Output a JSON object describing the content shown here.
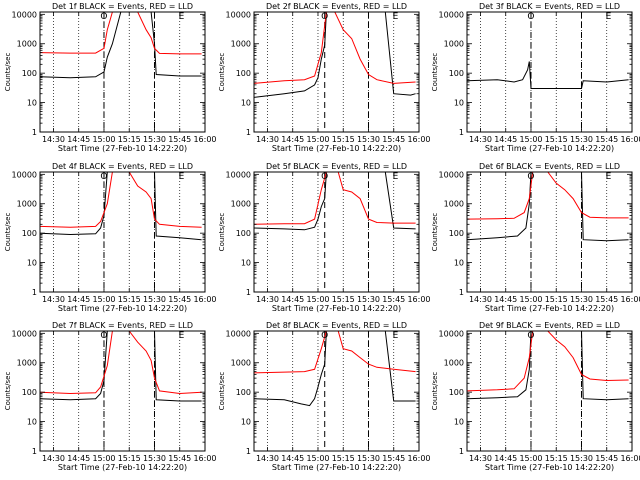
{
  "chart_data": [
    {
      "type": "line",
      "title": "Det 1f BLACK = Events, RED = LLD",
      "ylabel": "Counts/sec",
      "xlabel": "Start Time (27-Feb-10 14:22:20)",
      "x_ticks": [
        "14:30",
        "14:45",
        "15:00",
        "15:15",
        "15:30",
        "15:45",
        "16:00"
      ],
      "y_ticks": [
        "1",
        "10",
        "100",
        "1000",
        "10000"
      ],
      "yscale": "log",
      "ylim": [
        1,
        12000
      ],
      "xlim": [
        "14:22",
        "16:00"
      ],
      "markers": [
        "O",
        "E"
      ],
      "event_lines": [
        "15:00",
        "15:30"
      ],
      "series": [
        {
          "name": "BLACK",
          "color": "#000000",
          "x": [
            "14:22",
            "14:40",
            "14:55",
            "15:00",
            "15:02",
            "15:05",
            "15:10",
            "15:15",
            "15:20",
            "15:28",
            "15:30",
            "15:31",
            "15:45",
            "15:58"
          ],
          "values": [
            75,
            70,
            75,
            110,
            350,
            1000,
            12000,
            12000,
            12000,
            12000,
            1000,
            90,
            80,
            80
          ]
        },
        {
          "name": "RED",
          "color": "#ff0000",
          "x": [
            "14:22",
            "14:40",
            "14:55",
            "15:00",
            "15:02",
            "15:05",
            "15:10",
            "15:15",
            "15:20",
            "15:25",
            "15:28",
            "15:30",
            "15:33",
            "15:45",
            "15:58"
          ],
          "values": [
            500,
            480,
            480,
            700,
            3000,
            12000,
            12000,
            12000,
            12000,
            3000,
            1600,
            700,
            470,
            450,
            450
          ]
        }
      ]
    },
    {
      "type": "line",
      "title": "Det 2f BLACK = Events, RED = LLD",
      "ylabel": "Counts/sec",
      "xlabel": "Start Time (27-Feb-10 14:22:20)",
      "x_ticks": [
        "14:30",
        "14:45",
        "15:00",
        "15:15",
        "15:30",
        "15:45",
        "16:00"
      ],
      "y_ticks": [
        "1",
        "10",
        "100",
        "1000",
        "10000"
      ],
      "yscale": "log",
      "ylim": [
        1,
        12000
      ],
      "xlim": [
        "14:22",
        "16:00"
      ],
      "markers": [
        "O",
        "E"
      ],
      "event_lines": [
        "15:04",
        "15:30"
      ],
      "series": [
        {
          "name": "BLACK",
          "color": "#000000",
          "x": [
            "14:22",
            "14:40",
            "14:52",
            "14:58",
            "15:00",
            "15:02",
            "15:04",
            "15:05",
            "15:06",
            "15:32",
            "15:40",
            "15:45",
            "15:55",
            "15:58"
          ],
          "values": [
            15,
            20,
            25,
            40,
            70,
            300,
            900,
            12000,
            12000,
            12000,
            12000,
            20,
            18,
            20
          ]
        },
        {
          "name": "RED",
          "color": "#ff0000",
          "x": [
            "14:22",
            "14:40",
            "14:52",
            "14:58",
            "15:02",
            "15:05",
            "15:08",
            "15:10",
            "15:15",
            "15:20",
            "15:25",
            "15:30",
            "15:35",
            "15:45",
            "15:58"
          ],
          "values": [
            45,
            55,
            60,
            80,
            500,
            12000,
            12000,
            12000,
            3000,
            1500,
            300,
            90,
            60,
            45,
            50
          ]
        }
      ]
    },
    {
      "type": "line",
      "title": "Det 3f BLACK = Events, RED = LLD",
      "ylabel": "Counts/sec",
      "xlabel": "Start Time (27-Feb-10 14:22:20)",
      "x_ticks": [
        "14:30",
        "14:45",
        "15:00",
        "15:15",
        "15:30",
        "15:45",
        "16:00"
      ],
      "y_ticks": [
        "1",
        "10",
        "100",
        "1000",
        "10000"
      ],
      "yscale": "log",
      "ylim": [
        1,
        12000
      ],
      "xlim": [
        "14:22",
        "16:00"
      ],
      "markers": [
        "O",
        "E"
      ],
      "event_lines": [
        "15:00",
        "15:30"
      ],
      "series": [
        {
          "name": "BLACK",
          "color": "#000000",
          "x": [
            "14:22",
            "14:40",
            "14:50",
            "14:55",
            "14:58",
            "14:59",
            "15:00",
            "15:30",
            "15:31",
            "15:45",
            "15:58"
          ],
          "values": [
            55,
            60,
            50,
            60,
            130,
            250,
            30,
            30,
            55,
            50,
            60
          ]
        }
      ]
    },
    {
      "type": "line",
      "title": "Det 4f BLACK = Events, RED = LLD",
      "ylabel": "Counts/sec",
      "xlabel": "Start Time (27-Feb-10 14:22:20)",
      "x_ticks": [
        "14:30",
        "14:45",
        "15:00",
        "15:15",
        "15:30",
        "15:45",
        "16:00"
      ],
      "y_ticks": [
        "1",
        "10",
        "100",
        "1000",
        "10000"
      ],
      "yscale": "log",
      "ylim": [
        1,
        12000
      ],
      "xlim": [
        "14:22",
        "16:00"
      ],
      "markers": [
        "O",
        "E"
      ],
      "event_lines": [
        "15:00",
        "15:30"
      ],
      "series": [
        {
          "name": "BLACK",
          "color": "#000000",
          "x": [
            "14:22",
            "14:40",
            "14:55",
            "14:58",
            "15:00",
            "15:02",
            "15:05",
            "15:10",
            "15:28",
            "15:30",
            "15:31",
            "15:45",
            "15:58"
          ],
          "values": [
            100,
            90,
            95,
            150,
            400,
            12000,
            12000,
            12000,
            12000,
            12000,
            80,
            70,
            60
          ]
        },
        {
          "name": "RED",
          "color": "#ff0000",
          "x": [
            "14:22",
            "14:40",
            "14:55",
            "14:58",
            "15:02",
            "15:05",
            "15:08",
            "15:15",
            "15:20",
            "15:25",
            "15:28",
            "15:30",
            "15:33",
            "15:45",
            "15:58"
          ],
          "values": [
            170,
            160,
            170,
            250,
            1000,
            12000,
            12000,
            12000,
            4000,
            2500,
            1500,
            300,
            200,
            170,
            160
          ]
        }
      ]
    },
    {
      "type": "line",
      "title": "Det 5f BLACK = Events, RED = LLD",
      "ylabel": "Counts/sec",
      "xlabel": "Start Time (27-Feb-10 14:22:20)",
      "x_ticks": [
        "14:30",
        "14:45",
        "15:00",
        "15:15",
        "15:30",
        "15:45",
        "16:00"
      ],
      "y_ticks": [
        "1",
        "10",
        "100",
        "1000",
        "10000"
      ],
      "yscale": "log",
      "ylim": [
        1,
        12000
      ],
      "xlim": [
        "14:22",
        "16:00"
      ],
      "markers": [
        "O",
        "E"
      ],
      "event_lines": [
        "15:04",
        "15:30"
      ],
      "series": [
        {
          "name": "BLACK",
          "color": "#000000",
          "x": [
            "14:22",
            "14:40",
            "14:52",
            "14:58",
            "15:00",
            "15:02",
            "15:04",
            "15:05",
            "15:06",
            "15:32",
            "15:40",
            "15:45",
            "15:58"
          ],
          "values": [
            150,
            140,
            130,
            160,
            300,
            800,
            1500,
            12000,
            12000,
            12000,
            12000,
            150,
            140
          ]
        },
        {
          "name": "RED",
          "color": "#ff0000",
          "x": [
            "14:22",
            "14:40",
            "14:52",
            "14:58",
            "15:02",
            "15:05",
            "15:08",
            "15:12",
            "15:15",
            "15:20",
            "15:25",
            "15:30",
            "15:35",
            "15:45",
            "15:58"
          ],
          "values": [
            200,
            210,
            210,
            300,
            3000,
            12000,
            12000,
            12000,
            3000,
            2500,
            1500,
            300,
            230,
            220,
            220
          ]
        }
      ]
    },
    {
      "type": "line",
      "title": "Det 6f BLACK = Events, RED = LLD",
      "ylabel": "Counts/sec",
      "xlabel": "Start Time (27-Feb-10 14:22:20)",
      "x_ticks": [
        "14:30",
        "14:45",
        "15:00",
        "15:15",
        "15:30",
        "15:45",
        "16:00"
      ],
      "y_ticks": [
        "1",
        "10",
        "100",
        "1000",
        "10000"
      ],
      "yscale": "log",
      "ylim": [
        1,
        12000
      ],
      "xlim": [
        "14:22",
        "16:00"
      ],
      "markers": [
        "O",
        "E"
      ],
      "event_lines": [
        "15:00",
        "15:30"
      ],
      "series": [
        {
          "name": "BLACK",
          "color": "#000000",
          "x": [
            "14:22",
            "14:40",
            "14:52",
            "14:57",
            "14:59",
            "15:00",
            "15:30",
            "15:31",
            "15:45",
            "15:58"
          ],
          "values": [
            60,
            70,
            80,
            150,
            1000,
            12000,
            12000,
            60,
            55,
            60
          ]
        },
        {
          "name": "RED",
          "color": "#ff0000",
          "x": [
            "14:22",
            "14:40",
            "14:50",
            "14:56",
            "14:59",
            "15:01",
            "15:05",
            "15:10",
            "15:15",
            "15:20",
            "15:25",
            "15:30",
            "15:35",
            "15:45",
            "15:58"
          ],
          "values": [
            300,
            310,
            320,
            500,
            1500,
            12000,
            12000,
            12000,
            5000,
            3000,
            1500,
            500,
            350,
            330,
            330
          ]
        }
      ]
    },
    {
      "type": "line",
      "title": "Det 7f BLACK = Events, RED = LLD",
      "ylabel": "Counts/sec",
      "xlabel": "Start Time (27-Feb-10 14:22:20)",
      "x_ticks": [
        "14:30",
        "14:45",
        "15:00",
        "15:15",
        "15:30",
        "15:45",
        "16:00"
      ],
      "y_ticks": [
        "1",
        "10",
        "100",
        "1000",
        "10000"
      ],
      "yscale": "log",
      "ylim": [
        1,
        12000
      ],
      "xlim": [
        "14:22",
        "16:00"
      ],
      "markers": [
        "O",
        "E"
      ],
      "event_lines": [
        "15:00",
        "15:30"
      ],
      "series": [
        {
          "name": "BLACK",
          "color": "#000000",
          "x": [
            "14:22",
            "14:40",
            "14:55",
            "14:58",
            "15:00",
            "15:02",
            "15:05",
            "15:10",
            "15:28",
            "15:30",
            "15:31",
            "15:45",
            "15:58"
          ],
          "values": [
            60,
            55,
            60,
            90,
            250,
            12000,
            12000,
            12000,
            12000,
            12000,
            55,
            50,
            50
          ]
        },
        {
          "name": "RED",
          "color": "#ff0000",
          "x": [
            "14:22",
            "14:40",
            "14:55",
            "14:58",
            "15:02",
            "15:05",
            "15:08",
            "15:15",
            "15:20",
            "15:25",
            "15:28",
            "15:30",
            "15:33",
            "15:45",
            "15:58"
          ],
          "values": [
            100,
            90,
            95,
            150,
            800,
            12000,
            12000,
            12000,
            5000,
            2500,
            1200,
            300,
            110,
            90,
            100
          ]
        }
      ]
    },
    {
      "type": "line",
      "title": "Det 8f BLACK = Events, RED = LLD",
      "ylabel": "Counts/sec",
      "xlabel": "Start Time (27-Feb-10 14:22:20)",
      "x_ticks": [
        "14:30",
        "14:45",
        "15:00",
        "15:15",
        "15:30",
        "15:45",
        "16:00"
      ],
      "y_ticks": [
        "1",
        "10",
        "100",
        "1000",
        "10000"
      ],
      "yscale": "log",
      "ylim": [
        1,
        12000
      ],
      "xlim": [
        "14:22",
        "16:00"
      ],
      "markers": [
        "O",
        "E"
      ],
      "event_lines": [
        "15:04",
        "15:30"
      ],
      "series": [
        {
          "name": "BLACK",
          "color": "#000000",
          "x": [
            "14:22",
            "14:40",
            "14:50",
            "14:55",
            "14:58",
            "15:00",
            "15:02",
            "15:04",
            "15:05",
            "15:06",
            "15:32",
            "15:40",
            "15:45",
            "15:58"
          ],
          "values": [
            60,
            55,
            40,
            35,
            60,
            150,
            400,
            900,
            12000,
            12000,
            12000,
            12000,
            50,
            50
          ]
        },
        {
          "name": "RED",
          "color": "#ff0000",
          "x": [
            "14:22",
            "14:40",
            "14:52",
            "14:58",
            "15:02",
            "15:05",
            "15:08",
            "15:12",
            "15:15",
            "15:20",
            "15:25",
            "15:30",
            "15:35",
            "15:45",
            "15:58"
          ],
          "values": [
            450,
            480,
            500,
            600,
            3000,
            12000,
            12000,
            12000,
            3000,
            2500,
            1500,
            900,
            700,
            600,
            500
          ]
        }
      ]
    },
    {
      "type": "line",
      "title": "Det 9f BLACK = Events, RED = LLD",
      "ylabel": "Counts/sec",
      "xlabel": "Start Time (27-Feb-10 14:22:20)",
      "x_ticks": [
        "14:30",
        "14:45",
        "15:00",
        "15:15",
        "15:30",
        "15:45",
        "16:00"
      ],
      "y_ticks": [
        "1",
        "10",
        "100",
        "1000",
        "10000"
      ],
      "yscale": "log",
      "ylim": [
        1,
        12000
      ],
      "xlim": [
        "14:22",
        "16:00"
      ],
      "markers": [
        "O",
        "E"
      ],
      "event_lines": [
        "15:00",
        "15:30"
      ],
      "series": [
        {
          "name": "BLACK",
          "color": "#000000",
          "x": [
            "14:22",
            "14:40",
            "14:52",
            "14:57",
            "14:59",
            "15:00",
            "15:30",
            "15:31",
            "15:45",
            "15:58"
          ],
          "values": [
            60,
            65,
            70,
            120,
            600,
            12000,
            12000,
            60,
            55,
            60
          ]
        },
        {
          "name": "RED",
          "color": "#ff0000",
          "x": [
            "14:22",
            "14:40",
            "14:50",
            "14:56",
            "14:59",
            "15:01",
            "15:05",
            "15:10",
            "15:15",
            "15:20",
            "15:25",
            "15:30",
            "15:35",
            "15:45",
            "15:58"
          ],
          "values": [
            110,
            120,
            130,
            300,
            1500,
            12000,
            12000,
            12000,
            6000,
            3500,
            1500,
            400,
            280,
            250,
            260
          ]
        }
      ]
    }
  ]
}
